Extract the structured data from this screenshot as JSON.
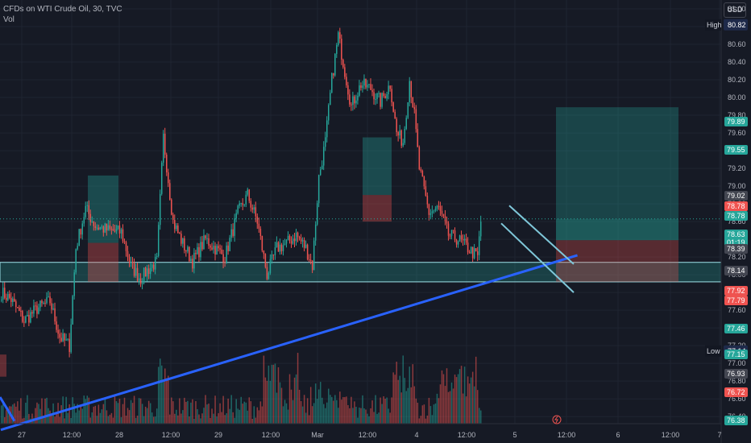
{
  "header": {
    "symbol": "CFDs on WTI Crude Oil, 30, TVC",
    "volume_label": "Vol",
    "currency": "USD"
  },
  "colors": {
    "background": "#161a25",
    "up": "#26a69a",
    "down": "#ef5350",
    "trendline": "#2962ff",
    "channel": "#7fc7d9",
    "zone": "#4dd0e1"
  },
  "chart_data": {
    "type": "candlestick",
    "title": "CFDs on WTI Crude Oil, 30, TVC",
    "x_tick_labels": [
      "27",
      "12:00",
      "28",
      "12:00",
      "29",
      "12:00",
      "Mar",
      "12:00",
      "4",
      "12:00",
      "5",
      "12:00",
      "6",
      "12:00",
      "7"
    ],
    "y_tick_labels": [
      "81.00",
      "80.80",
      "80.60",
      "80.40",
      "80.20",
      "80.00",
      "79.80",
      "79.60",
      "79.40",
      "79.20",
      "79.00",
      "78.80",
      "78.60",
      "78.40",
      "78.20",
      "78.00",
      "77.80",
      "77.60",
      "77.40",
      "77.20",
      "77.00",
      "76.80",
      "76.60",
      "76.40"
    ],
    "ylim": [
      76.32,
      81.1
    ],
    "high": {
      "label": "High",
      "value": "80.82"
    },
    "low": {
      "label": "Low",
      "value": "77.14"
    },
    "price_labels": [
      {
        "value": "79.89",
        "color": "#26a69a"
      },
      {
        "value": "79.55",
        "color": "#26a69a"
      },
      {
        "value": "79.02",
        "color": "#434651"
      },
      {
        "value": "78.78",
        "color": "#ef5350"
      },
      {
        "value": "78.78",
        "color": "#26a69a"
      },
      {
        "value": "78.63",
        "sub": "01:19",
        "color": "#26a69a"
      },
      {
        "value": "78.39",
        "color": "#434651"
      },
      {
        "value": "78.14",
        "color": "#434651"
      },
      {
        "value": "77.92",
        "color": "#ef5350"
      },
      {
        "value": "77.79",
        "color": "#ef5350"
      },
      {
        "value": "77.46",
        "color": "#26a69a"
      },
      {
        "value": "77.15",
        "color": "#26a69a"
      },
      {
        "value": "76.93",
        "color": "#434651"
      },
      {
        "value": "76.72",
        "color": "#ef5350"
      },
      {
        "value": "76.38",
        "color": "#26a69a"
      }
    ],
    "support_zone": {
      "top": 78.14,
      "bottom": 77.92
    },
    "trendline": {
      "from": {
        "bar": 0,
        "price": 76.25
      },
      "to": {
        "bar": 356,
        "price": 78.22
      }
    },
    "ohlc_anchors": [
      {
        "bar": 0,
        "price": 77.8
      },
      {
        "bar": 6,
        "price": 77.72
      },
      {
        "bar": 14,
        "price": 77.48
      },
      {
        "bar": 22,
        "price": 77.62
      },
      {
        "bar": 30,
        "price": 77.7
      },
      {
        "bar": 36,
        "price": 77.3
      },
      {
        "bar": 42,
        "price": 77.2
      },
      {
        "bar": 46,
        "price": 78.3
      },
      {
        "bar": 52,
        "price": 78.75
      },
      {
        "bar": 58,
        "price": 78.55
      },
      {
        "bar": 66,
        "price": 78.5
      },
      {
        "bar": 74,
        "price": 78.48
      },
      {
        "bar": 80,
        "price": 78.1
      },
      {
        "bar": 86,
        "price": 77.95
      },
      {
        "bar": 90,
        "price": 78.05
      },
      {
        "bar": 96,
        "price": 78.15
      },
      {
        "bar": 100,
        "price": 79.55
      },
      {
        "bar": 106,
        "price": 78.6
      },
      {
        "bar": 112,
        "price": 78.35
      },
      {
        "bar": 118,
        "price": 78.15
      },
      {
        "bar": 126,
        "price": 78.4
      },
      {
        "bar": 132,
        "price": 78.3
      },
      {
        "bar": 138,
        "price": 78.2
      },
      {
        "bar": 146,
        "price": 78.7
      },
      {
        "bar": 152,
        "price": 78.9
      },
      {
        "bar": 158,
        "price": 78.6
      },
      {
        "bar": 164,
        "price": 78.0
      },
      {
        "bar": 170,
        "price": 78.3
      },
      {
        "bar": 176,
        "price": 78.35
      },
      {
        "bar": 182,
        "price": 78.45
      },
      {
        "bar": 188,
        "price": 78.3
      },
      {
        "bar": 192,
        "price": 78.1
      },
      {
        "bar": 196,
        "price": 79.1
      },
      {
        "bar": 200,
        "price": 79.5
      },
      {
        "bar": 204,
        "price": 80.2
      },
      {
        "bar": 208,
        "price": 80.7
      },
      {
        "bar": 212,
        "price": 80.3
      },
      {
        "bar": 216,
        "price": 79.9
      },
      {
        "bar": 222,
        "price": 80.15
      },
      {
        "bar": 228,
        "price": 80.1
      },
      {
        "bar": 234,
        "price": 79.95
      },
      {
        "bar": 240,
        "price": 80.15
      },
      {
        "bar": 244,
        "price": 79.6
      },
      {
        "bar": 248,
        "price": 79.5
      },
      {
        "bar": 252,
        "price": 80.2
      },
      {
        "bar": 255,
        "price": 79.8
      },
      {
        "bar": 258,
        "price": 79.2
      },
      {
        "bar": 264,
        "price": 78.7
      },
      {
        "bar": 270,
        "price": 78.75
      },
      {
        "bar": 276,
        "price": 78.45
      },
      {
        "bar": 282,
        "price": 78.4
      },
      {
        "bar": 288,
        "price": 78.3
      },
      {
        "bar": 294,
        "price": 78.2
      },
      {
        "bar": 296,
        "price": 78.6
      }
    ]
  }
}
